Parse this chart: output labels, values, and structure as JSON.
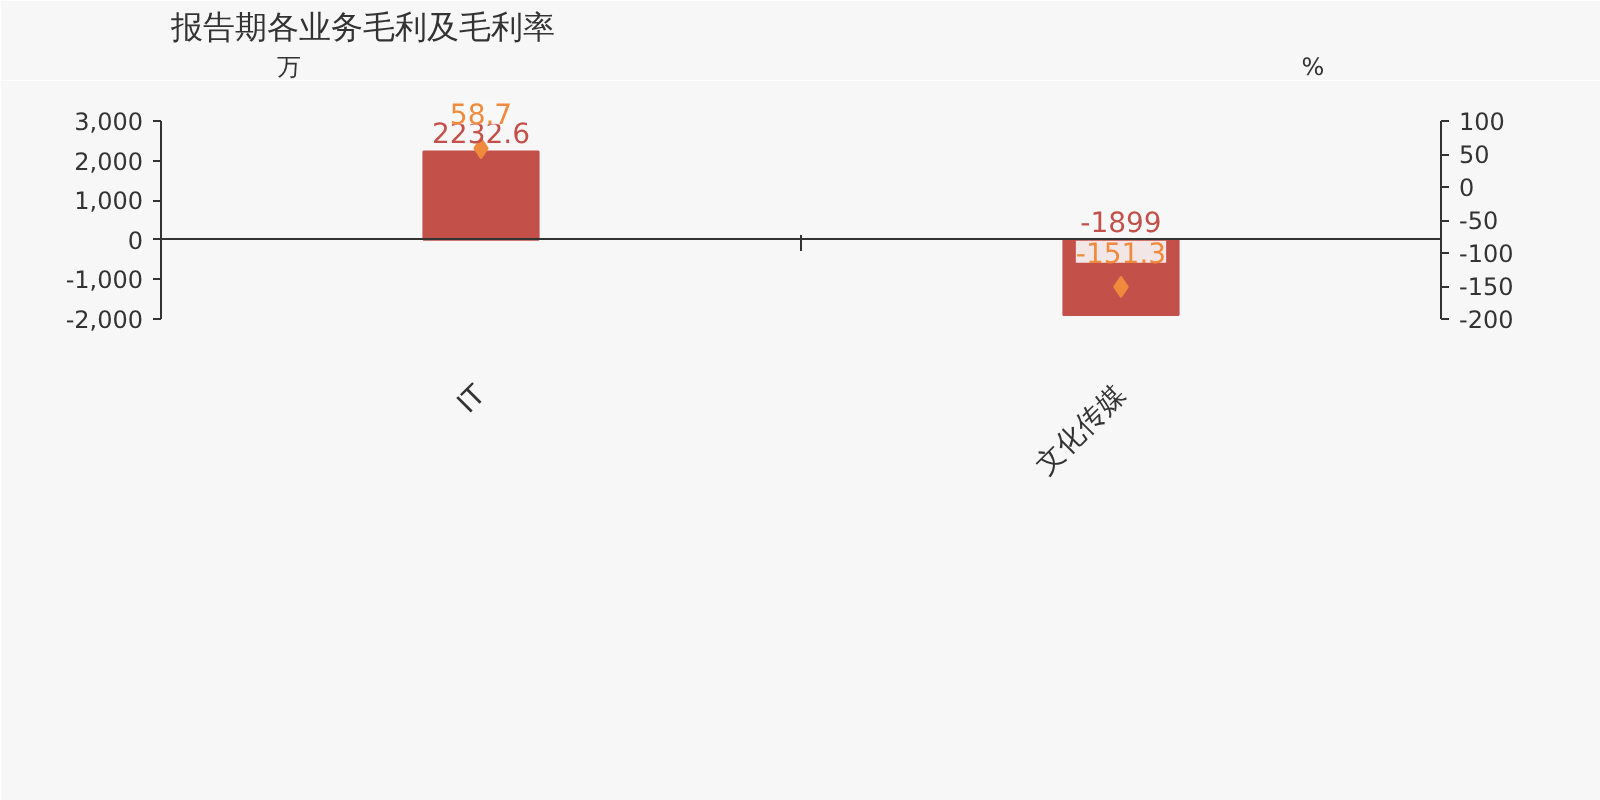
{
  "chart_data": {
    "type": "bar",
    "title": "报告期各业务毛利及毛利率",
    "ylabel": "万",
    "y2label": "%",
    "categories": [
      "IT",
      "文化传媒"
    ],
    "series": [
      {
        "color": "#c4504a",
        "values": [
          2232.6,
          -1899
        ]
      },
      {
        "type": "scatter",
        "axis": "y2",
        "color": "#f08a3c",
        "marker": "diamond",
        "values": [
          58.7,
          -151.3
        ]
      }
    ],
    "data_labels": true,
    "ylim": [
      -2000,
      3000
    ],
    "yticks": [
      {
        "value": -2000,
        "label": "-2,000"
      },
      {
        "value": -1000,
        "label": "-1,000"
      },
      0,
      {
        "value": 1000,
        "label": "1,000"
      },
      {
        "value": 2000,
        "label": "2,000"
      },
      {
        "value": 3000,
        "label": "3,000"
      }
    ],
    "y2lim": [
      -200,
      100
    ],
    "y2ticks": [
      -200,
      -150,
      -100,
      -50,
      0,
      50,
      100
    ]
  }
}
